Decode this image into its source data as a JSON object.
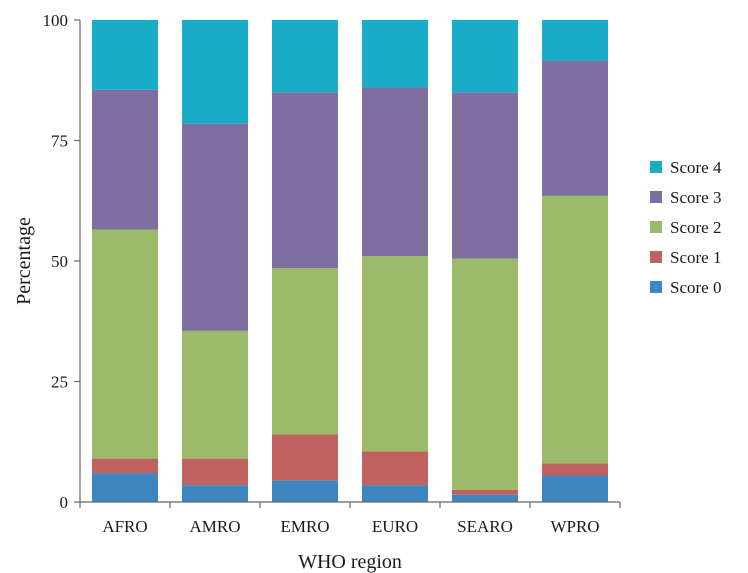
{
  "chart_data": {
    "type": "bar",
    "stacked": true,
    "title": "",
    "xlabel": "WHO region",
    "ylabel": "Percentage",
    "categories": [
      "AFRO",
      "AMRO",
      "EMRO",
      "EURO",
      "SEARO",
      "WPRO"
    ],
    "ylim": [
      0,
      100
    ],
    "yticks": [
      0,
      25,
      50,
      75,
      100
    ],
    "grid": false,
    "legend_position": "right",
    "series": [
      {
        "name": "Score 0",
        "color": "#3D86C0",
        "values": [
          6,
          3.5,
          4.5,
          3.5,
          1.5,
          5.5
        ]
      },
      {
        "name": "Score 1",
        "color": "#C0615F",
        "values": [
          3,
          5.5,
          9.5,
          7,
          1,
          2.5
        ]
      },
      {
        "name": "Score 2",
        "color": "#9BBB6A",
        "values": [
          47.5,
          26.5,
          34.5,
          40.5,
          48,
          55.5
        ]
      },
      {
        "name": "Score 3",
        "color": "#7F6FA0",
        "values": [
          29,
          43,
          36.5,
          35,
          34.5,
          28
        ]
      },
      {
        "name": "Score 4",
        "color": "#19ACC6",
        "values": [
          14.5,
          21.5,
          15,
          14,
          15,
          8.5
        ]
      }
    ]
  }
}
